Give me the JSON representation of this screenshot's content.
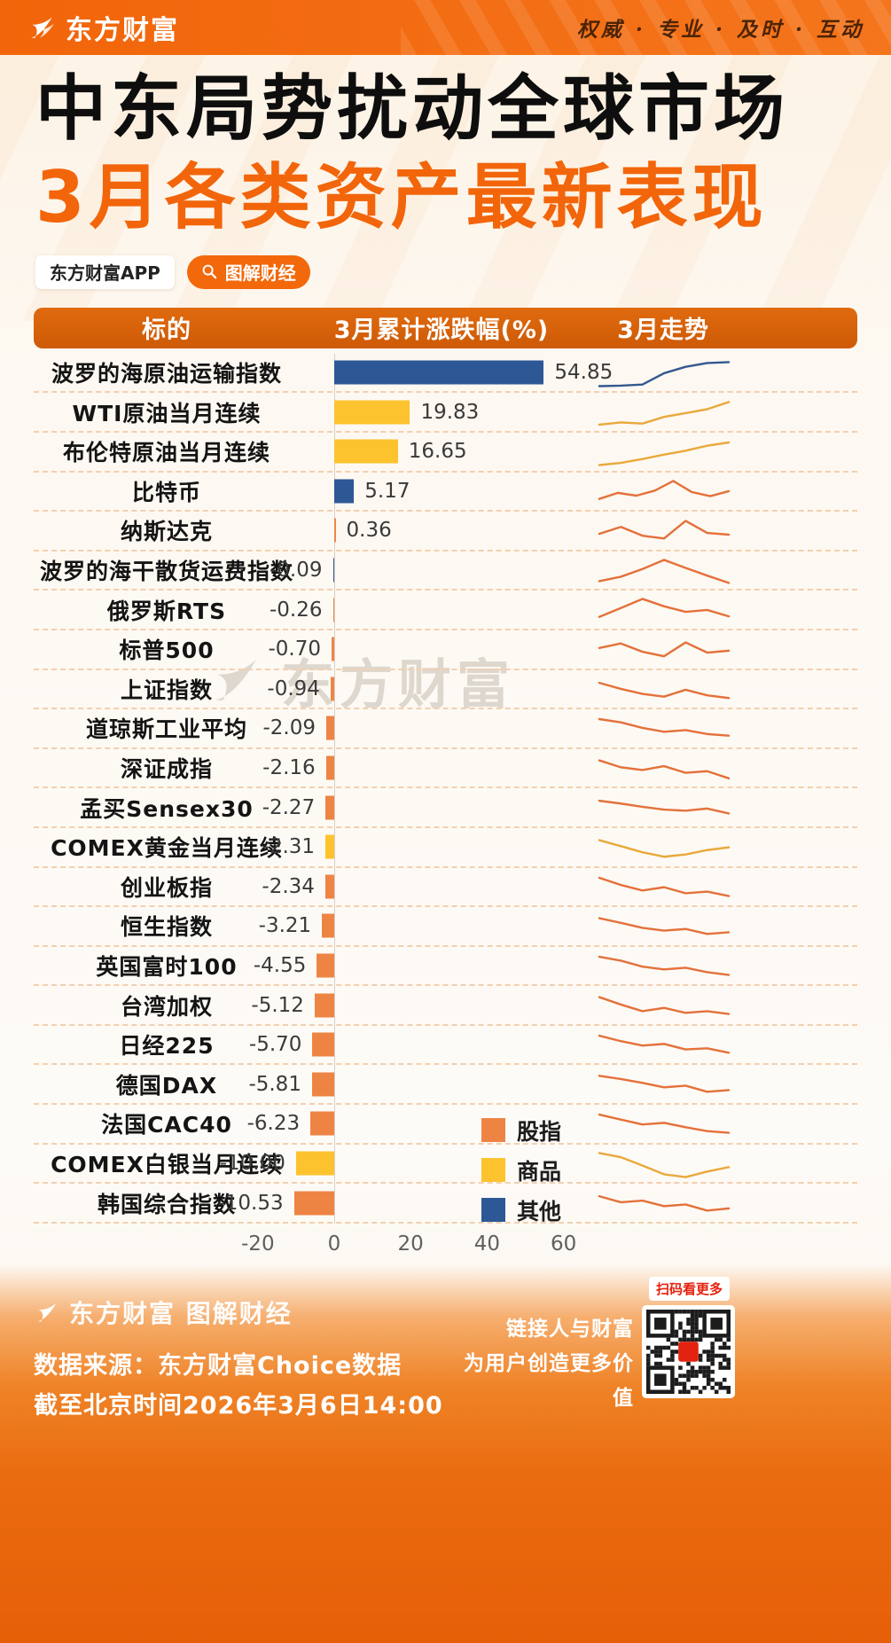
{
  "header": {
    "logo_text": "东方财富",
    "tagline": "权威 · 专业 · 及时 · 互动"
  },
  "title": {
    "line1": "中东局势扰动全球市场",
    "line2": "3月各类资产最新表现"
  },
  "buttons": {
    "app_label": "东方财富APP",
    "tag_label": "图解财经"
  },
  "table": {
    "headers": [
      "标的",
      "3月累计涨跌幅(%)",
      "3月走势"
    ]
  },
  "watermark": "东方财富",
  "chart_data": {
    "type": "bar",
    "orientation": "horizontal",
    "title": "3月各类资产最新表现",
    "value_label": "3月累计涨跌幅(%)",
    "trend_label": "3月走势",
    "xlim": [
      -20,
      65
    ],
    "axis_ticks": [
      -20,
      0,
      20,
      40,
      60
    ],
    "legend": [
      {
        "label": "股指",
        "color": "#ee8444"
      },
      {
        "label": "商品",
        "color": "#fdc32e"
      },
      {
        "label": "其他",
        "color": "#2e5796"
      }
    ],
    "rows": [
      {
        "name": "波罗的海原油运输指数",
        "value": 54.85,
        "label": "54.85",
        "category": "其他",
        "spark_color": "#33588f",
        "spark": [
          0.08,
          0.1,
          0.14,
          0.55,
          0.78,
          0.92,
          0.95
        ]
      },
      {
        "name": "WTI原油当月连续",
        "value": 19.83,
        "label": "19.83",
        "category": "商品",
        "spark_color": "#e9a93c",
        "spark": [
          0.1,
          0.18,
          0.14,
          0.38,
          0.52,
          0.66,
          0.92
        ]
      },
      {
        "name": "布伦特原油当月连续",
        "value": 16.65,
        "label": "16.65",
        "category": "商品",
        "spark_color": "#e9a93c",
        "spark": [
          0.08,
          0.16,
          0.3,
          0.46,
          0.6,
          0.78,
          0.9
        ]
      },
      {
        "name": "比特币",
        "value": 5.17,
        "label": "5.17",
        "category": "其他",
        "spark_color": "#e4713a",
        "spark": [
          0.3,
          0.52,
          0.42,
          0.6,
          0.95,
          0.55,
          0.4,
          0.58
        ]
      },
      {
        "name": "纳斯达克",
        "value": 0.36,
        "label": "0.36",
        "category": "股指",
        "spark_color": "#e4713a",
        "spark": [
          0.45,
          0.7,
          0.38,
          0.28,
          0.92,
          0.48,
          0.42
        ]
      },
      {
        "name": "波罗的海干散货运费指数",
        "value": -0.09,
        "label": "-0.09",
        "category": "其他",
        "spark_color": "#e4713a",
        "spark": [
          0.18,
          0.34,
          0.62,
          0.95,
          0.66,
          0.38,
          0.12
        ]
      },
      {
        "name": "俄罗斯RTS",
        "value": -0.26,
        "label": "-0.26",
        "category": "股指",
        "spark_color": "#e4713a",
        "spark": [
          0.3,
          0.62,
          0.95,
          0.68,
          0.48,
          0.55,
          0.32
        ]
      },
      {
        "name": "标普500",
        "value": -0.7,
        "label": "-0.70",
        "category": "股指",
        "spark_color": "#e4713a",
        "spark": [
          0.62,
          0.78,
          0.48,
          0.32,
          0.82,
          0.45,
          0.52
        ]
      },
      {
        "name": "上证指数",
        "value": -0.94,
        "label": "-0.94",
        "category": "股指",
        "spark_color": "#e4713a",
        "spark": [
          0.8,
          0.58,
          0.4,
          0.3,
          0.55,
          0.35,
          0.25
        ]
      },
      {
        "name": "道琼斯工业平均",
        "value": -2.09,
        "label": "-2.09",
        "category": "股指",
        "spark_color": "#e4713a",
        "spark": [
          0.9,
          0.78,
          0.58,
          0.44,
          0.5,
          0.36,
          0.3
        ]
      },
      {
        "name": "深证成指",
        "value": -2.16,
        "label": "-2.16",
        "category": "股指",
        "spark_color": "#e4713a",
        "spark": [
          0.85,
          0.6,
          0.5,
          0.64,
          0.4,
          0.46,
          0.2
        ]
      },
      {
        "name": "孟买Sensex30",
        "value": -2.27,
        "label": "-2.27",
        "category": "股指",
        "spark_color": "#e4713a",
        "spark": [
          0.8,
          0.7,
          0.58,
          0.48,
          0.44,
          0.52,
          0.34
        ]
      },
      {
        "name": "COMEX黄金当月连续",
        "value": -2.31,
        "label": "-2.31",
        "category": "商品",
        "spark_color": "#e9a93c",
        "spark": [
          0.82,
          0.6,
          0.38,
          0.22,
          0.3,
          0.46,
          0.56
        ]
      },
      {
        "name": "创业板指",
        "value": -2.34,
        "label": "-2.34",
        "category": "股指",
        "spark_color": "#e4713a",
        "spark": [
          0.9,
          0.64,
          0.44,
          0.56,
          0.34,
          0.4,
          0.24
        ]
      },
      {
        "name": "恒生指数",
        "value": -3.21,
        "label": "-3.21",
        "category": "股指",
        "spark_color": "#e4713a",
        "spark": [
          0.85,
          0.68,
          0.5,
          0.4,
          0.46,
          0.28,
          0.34
        ]
      },
      {
        "name": "英国富时100",
        "value": -4.55,
        "label": "-4.55",
        "category": "股指",
        "spark_color": "#e4713a",
        "spark": [
          0.9,
          0.76,
          0.54,
          0.44,
          0.5,
          0.34,
          0.24
        ]
      },
      {
        "name": "台湾加权",
        "value": -5.12,
        "label": "-5.12",
        "category": "股指",
        "spark_color": "#e4713a",
        "spark": [
          0.85,
          0.58,
          0.34,
          0.46,
          0.28,
          0.34,
          0.24
        ]
      },
      {
        "name": "日经225",
        "value": -5.7,
        "label": "-5.70",
        "category": "股指",
        "spark_color": "#e4713a",
        "spark": [
          0.9,
          0.7,
          0.54,
          0.6,
          0.4,
          0.44,
          0.28
        ]
      },
      {
        "name": "德国DAX",
        "value": -5.81,
        "label": "-5.81",
        "category": "股指",
        "spark_color": "#e4713a",
        "spark": [
          0.86,
          0.74,
          0.6,
          0.44,
          0.5,
          0.28,
          0.34
        ]
      },
      {
        "name": "法国CAC40",
        "value": -6.23,
        "label": "-6.23",
        "category": "股指",
        "spark_color": "#e4713a",
        "spark": [
          0.9,
          0.72,
          0.54,
          0.6,
          0.44,
          0.3,
          0.24
        ]
      },
      {
        "name": "COMEX白银当月连续",
        "value": -10.0,
        "label": "-10.00",
        "category": "商品",
        "spark_color": "#e9a93c",
        "spark": [
          0.95,
          0.8,
          0.5,
          0.18,
          0.08,
          0.28,
          0.44
        ]
      },
      {
        "name": "韩国综合指数",
        "value": -10.53,
        "label": "-10.53",
        "category": "股指",
        "spark_color": "#e4713a",
        "spark": [
          0.8,
          0.58,
          0.64,
          0.44,
          0.5,
          0.28,
          0.36
        ]
      }
    ]
  },
  "footer": {
    "brand": "东方财富 图解财经",
    "slogan_line1": "链接人与财富",
    "slogan_line2": "为用户创造更多价值",
    "source": "数据来源：东方财富Choice数据",
    "as_of": "截至北京时间2026年3月6日14:00",
    "qr_label": "扫码看更多"
  }
}
